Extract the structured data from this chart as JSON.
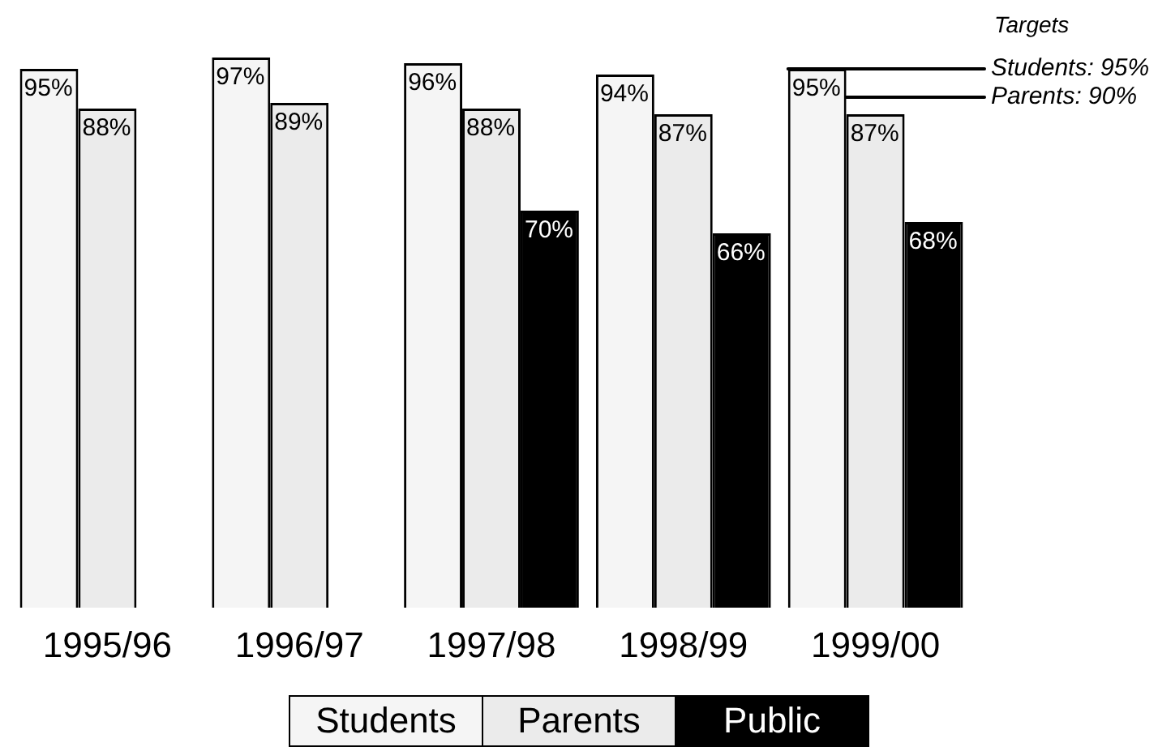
{
  "chart_data": {
    "type": "bar",
    "categories": [
      "1995/96",
      "1996/97",
      "1997/98",
      "1998/99",
      "1999/00"
    ],
    "series": [
      {
        "name": "Students",
        "color": "#f5f5f5",
        "values": [
          95,
          97,
          96,
          94,
          95
        ],
        "value_labels": [
          "95%",
          "97%",
          "96%",
          "94%",
          "95%"
        ]
      },
      {
        "name": "Parents",
        "color": "#ebebeb",
        "values": [
          88,
          89,
          88,
          87,
          87
        ],
        "value_labels": [
          "88%",
          "89%",
          "88%",
          "87%",
          "87%"
        ]
      },
      {
        "name": "Public",
        "color": "#000000",
        "values": [
          null,
          null,
          70,
          66,
          68
        ],
        "value_labels": [
          null,
          null,
          "70%",
          "66%",
          "68%"
        ]
      }
    ],
    "ref_lines": [
      {
        "axis": "y",
        "value": 95,
        "label": "Students: 95%",
        "color": "#000000"
      },
      {
        "axis": "y",
        "value": 90,
        "label": "Parents: 90%",
        "color": "#000000"
      }
    ],
    "annotations": [
      "Targets"
    ],
    "legend": "bottom",
    "grid": false,
    "tick_labels": "x"
  }
}
